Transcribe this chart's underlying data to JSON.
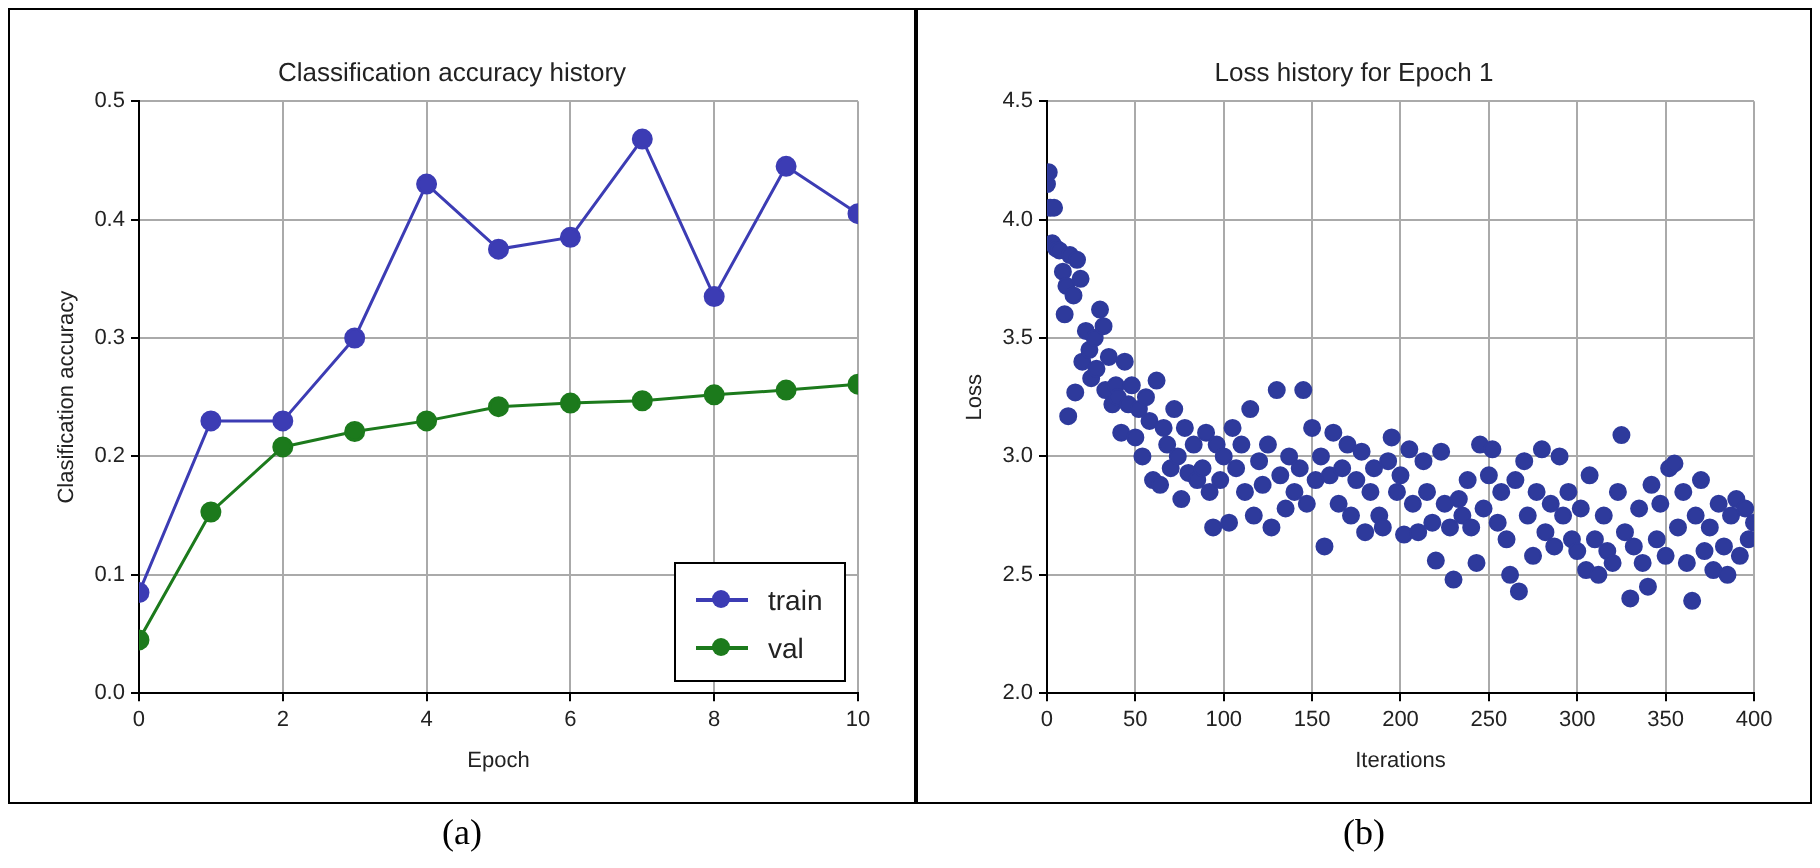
{
  "chart_data": [
    {
      "type": "line",
      "title": "Classification accuracy history",
      "xlabel": "Epoch",
      "ylabel": "Clasification accuracy",
      "x": [
        0,
        1,
        2,
        3,
        4,
        5,
        6,
        7,
        8,
        9,
        10
      ],
      "series": [
        {
          "name": "train",
          "color": "#3c3cb4",
          "values": [
            0.085,
            0.23,
            0.23,
            0.3,
            0.43,
            0.375,
            0.385,
            0.468,
            0.335,
            0.445,
            0.405
          ]
        },
        {
          "name": "val",
          "color": "#1c7a1c",
          "values": [
            0.045,
            0.153,
            0.208,
            0.221,
            0.23,
            0.242,
            0.245,
            0.247,
            0.252,
            0.256,
            0.261
          ]
        }
      ],
      "xlim": [
        0,
        10
      ],
      "xticks": [
        0,
        2,
        4,
        6,
        8,
        10
      ],
      "ylim": [
        0,
        0.5
      ],
      "yticks": [
        {
          "value": 0,
          "label": "0.0"
        },
        0.1,
        0.2,
        0.3,
        0.4,
        0.5
      ],
      "grid": true,
      "legend": "bottom right",
      "marker": "circle",
      "line_style": "solid",
      "annotations": [
        "(a)"
      ]
    },
    {
      "type": "scatter",
      "title": "Loss history for Epoch 1",
      "xlabel": "Iterations",
      "ylabel": "Loss",
      "x": [
        0,
        1,
        2,
        3,
        4,
        5,
        7,
        9,
        10,
        11,
        12,
        13,
        15,
        16,
        17,
        19,
        20,
        22,
        24,
        25,
        27,
        28,
        30,
        32,
        33,
        35,
        37,
        39,
        40,
        42,
        44,
        46,
        48,
        50,
        52,
        54,
        56,
        58,
        60,
        62,
        64,
        66,
        68,
        70,
        72,
        74,
        76,
        78,
        80,
        83,
        85,
        88,
        90,
        92,
        94,
        96,
        98,
        100,
        103,
        105,
        107,
        110,
        112,
        115,
        117,
        120,
        122,
        125,
        127,
        130,
        132,
        135,
        137,
        140,
        143,
        145,
        147,
        150,
        152,
        155,
        157,
        160,
        162,
        165,
        167,
        170,
        172,
        175,
        178,
        180,
        183,
        185,
        188,
        190,
        193,
        195,
        198,
        200,
        202,
        205,
        207,
        210,
        213,
        215,
        218,
        220,
        223,
        225,
        228,
        230,
        233,
        235,
        238,
        240,
        243,
        245,
        247,
        250,
        252,
        255,
        257,
        260,
        262,
        265,
        267,
        270,
        272,
        275,
        277,
        280,
        282,
        285,
        287,
        290,
        292,
        295,
        297,
        300,
        302,
        305,
        307,
        310,
        312,
        315,
        317,
        320,
        323,
        325,
        327,
        330,
        332,
        335,
        337,
        340,
        342,
        345,
        347,
        350,
        352,
        355,
        357,
        360,
        362,
        365,
        367,
        370,
        372,
        375,
        377,
        380,
        383,
        385,
        387,
        390,
        392,
        395,
        397,
        400
      ],
      "series": [
        {
          "color": "#2e3a9c",
          "values": [
            4.15,
            4.2,
            4.05,
            3.9,
            4.05,
            3.88,
            3.87,
            3.78,
            3.6,
            3.72,
            3.17,
            3.85,
            3.68,
            3.27,
            3.83,
            3.75,
            3.4,
            3.53,
            3.45,
            3.33,
            3.5,
            3.37,
            3.62,
            3.55,
            3.28,
            3.42,
            3.22,
            3.3,
            3.25,
            3.1,
            3.4,
            3.22,
            3.3,
            3.08,
            3.2,
            3.0,
            3.25,
            3.15,
            2.9,
            3.32,
            2.88,
            3.12,
            3.05,
            2.95,
            3.2,
            3.0,
            2.82,
            3.12,
            2.93,
            3.05,
            2.9,
            2.95,
            3.1,
            2.85,
            2.7,
            3.05,
            2.9,
            3.0,
            2.72,
            3.12,
            2.95,
            3.05,
            2.85,
            3.2,
            2.75,
            2.98,
            2.88,
            3.05,
            2.7,
            3.28,
            2.92,
            2.78,
            3.0,
            2.85,
            2.95,
            3.28,
            2.8,
            3.12,
            2.9,
            3.0,
            2.62,
            2.92,
            3.1,
            2.8,
            2.95,
            3.05,
            2.75,
            2.9,
            3.02,
            2.68,
            2.85,
            2.95,
            2.75,
            2.7,
            2.98,
            3.08,
            2.85,
            2.92,
            2.67,
            3.03,
            2.8,
            2.68,
            2.98,
            2.85,
            2.72,
            2.56,
            3.02,
            2.8,
            2.7,
            2.48,
            2.82,
            2.75,
            2.9,
            2.7,
            2.55,
            3.05,
            2.78,
            2.92,
            3.03,
            2.72,
            2.85,
            2.65,
            2.5,
            2.9,
            2.43,
            2.98,
            2.75,
            2.58,
            2.85,
            3.03,
            2.68,
            2.8,
            2.62,
            3.0,
            2.75,
            2.85,
            2.65,
            2.6,
            2.78,
            2.52,
            2.92,
            2.65,
            2.5,
            2.75,
            2.6,
            2.55,
            2.85,
            3.09,
            2.68,
            2.4,
            2.62,
            2.78,
            2.55,
            2.45,
            2.88,
            2.65,
            2.8,
            2.58,
            2.95,
            2.97,
            2.7,
            2.85,
            2.55,
            2.39,
            2.75,
            2.9,
            2.6,
            2.7,
            2.52,
            2.8,
            2.62,
            2.5,
            2.75,
            2.82,
            2.58,
            2.78,
            2.65,
            2.72
          ]
        }
      ],
      "xlim": [
        0,
        400
      ],
      "xticks": [
        0,
        50,
        100,
        150,
        200,
        250,
        300,
        350,
        400
      ],
      "ylim": [
        2,
        4.5
      ],
      "yticks": [
        {
          "value": 2,
          "label": "2.0"
        },
        2.5,
        {
          "value": 3,
          "label": "3.0"
        },
        3.5,
        {
          "value": 4,
          "label": "4.0"
        },
        4.5
      ],
      "grid": true,
      "marker": "circle",
      "annotations": [
        "(b)"
      ]
    }
  ]
}
